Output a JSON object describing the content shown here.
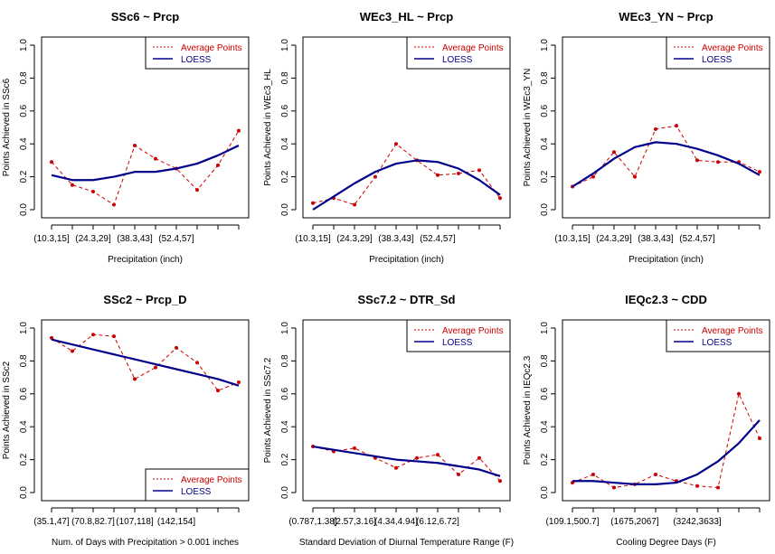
{
  "legend_labels": {
    "avg": "Average Points",
    "loess": "LOESS"
  },
  "colors": {
    "avg": "#cc0000",
    "loess": "#00008b"
  },
  "chart_data": [
    {
      "type": "line",
      "title": "SSc6 ~ Prcp",
      "xlabel": "Precipitation (inch)",
      "ylabel": "Points Achieved in SSc6",
      "ylim": [
        0,
        1
      ],
      "yticks": [
        "0.0",
        "0.2",
        "0.4",
        "0.6",
        "0.8",
        "1.0"
      ],
      "xticks": [
        "(10.3,15]",
        "(24.3,29]",
        "(38.3,43]",
        "(52.4,57]"
      ],
      "xtick_positions": [
        1,
        3,
        5,
        7
      ],
      "legend_position": "top-right",
      "series": [
        {
          "name": "Average Points",
          "style": "dashed",
          "x": [
            1,
            2,
            3,
            4,
            5,
            6,
            7,
            8,
            9,
            10
          ],
          "values": [
            0.29,
            0.15,
            0.11,
            0.03,
            0.39,
            0.31,
            0.25,
            0.12,
            0.27,
            0.48
          ]
        },
        {
          "name": "LOESS",
          "style": "solid",
          "x": [
            1,
            2,
            3,
            4,
            5,
            6,
            7,
            8,
            9,
            10
          ],
          "values": [
            0.21,
            0.18,
            0.18,
            0.2,
            0.23,
            0.23,
            0.25,
            0.28,
            0.33,
            0.39
          ]
        }
      ]
    },
    {
      "type": "line",
      "title": "WEc3_HL ~ Prcp",
      "xlabel": "Precipitation (inch)",
      "ylabel": "Points Achieved in WEc3_HL",
      "ylim": [
        0,
        1
      ],
      "yticks": [
        "0.0",
        "0.2",
        "0.4",
        "0.6",
        "0.8",
        "1.0"
      ],
      "xticks": [
        "(10.3,15]",
        "(24.3,29]",
        "(38.3,43]",
        "(52.4,57]"
      ],
      "xtick_positions": [
        1,
        3,
        5,
        7
      ],
      "legend_position": "top-right",
      "series": [
        {
          "name": "Average Points",
          "style": "dashed",
          "x": [
            1,
            2,
            3,
            4,
            5,
            6,
            7,
            8,
            9,
            10
          ],
          "values": [
            0.04,
            0.07,
            0.03,
            0.2,
            0.4,
            0.3,
            0.21,
            0.22,
            0.24,
            0.07
          ]
        },
        {
          "name": "LOESS",
          "style": "solid",
          "x": [
            1,
            2,
            3,
            4,
            5,
            6,
            7,
            8,
            9,
            10
          ],
          "values": [
            0.0,
            0.08,
            0.16,
            0.23,
            0.28,
            0.3,
            0.29,
            0.25,
            0.18,
            0.09
          ]
        }
      ]
    },
    {
      "type": "line",
      "title": "WEc3_YN ~ Prcp",
      "xlabel": "Precipitation (inch)",
      "ylabel": "Points Achieved in WEc3_YN",
      "ylim": [
        0,
        1
      ],
      "yticks": [
        "0.0",
        "0.2",
        "0.4",
        "0.6",
        "0.8",
        "1.0"
      ],
      "xticks": [
        "(10.3,15]",
        "(24.3,29]",
        "(38.3,43]",
        "(52.4,57]"
      ],
      "xtick_positions": [
        1,
        3,
        5,
        7
      ],
      "legend_position": "top-right",
      "series": [
        {
          "name": "Average Points",
          "style": "dashed",
          "x": [
            1,
            2,
            3,
            4,
            5,
            6,
            7,
            8,
            9,
            10
          ],
          "values": [
            0.14,
            0.2,
            0.35,
            0.2,
            0.49,
            0.51,
            0.3,
            0.29,
            0.29,
            0.23
          ]
        },
        {
          "name": "LOESS",
          "style": "solid",
          "x": [
            1,
            2,
            3,
            4,
            5,
            6,
            7,
            8,
            9,
            10
          ],
          "values": [
            0.14,
            0.22,
            0.31,
            0.38,
            0.41,
            0.4,
            0.37,
            0.33,
            0.28,
            0.21
          ]
        }
      ]
    },
    {
      "type": "line",
      "title": "SSc2 ~ Prcp_D",
      "xlabel": "Num. of Days with Precipitation > 0.001 inches",
      "ylabel": "Points Achieved in SSc2",
      "ylim": [
        0,
        1
      ],
      "yticks": [
        "0.0",
        "0.2",
        "0.4",
        "0.6",
        "0.8",
        "1.0"
      ],
      "xticks": [
        "(35.1,47]",
        "(70.8,82.7]",
        "(107,118]",
        "(142,154]"
      ],
      "xtick_positions": [
        1,
        3,
        5,
        7
      ],
      "legend_position": "bottom-right",
      "series": [
        {
          "name": "Average Points",
          "style": "dashed",
          "x": [
            1,
            2,
            3,
            4,
            5,
            6,
            7,
            8,
            9,
            10
          ],
          "values": [
            0.94,
            0.86,
            0.96,
            0.95,
            0.69,
            0.76,
            0.88,
            0.79,
            0.62,
            0.67
          ]
        },
        {
          "name": "LOESS",
          "style": "solid",
          "x": [
            1,
            2,
            3,
            4,
            5,
            6,
            7,
            8,
            9,
            10
          ],
          "values": [
            0.93,
            0.9,
            0.87,
            0.84,
            0.81,
            0.78,
            0.75,
            0.72,
            0.69,
            0.65
          ]
        }
      ]
    },
    {
      "type": "line",
      "title": "SSc7.2 ~ DTR_Sd",
      "xlabel": "Standard Deviation of Diurnal Temperature Range (F)",
      "ylabel": "Points Achieved in SSc7.2",
      "ylim": [
        0,
        1
      ],
      "yticks": [
        "0.0",
        "0.2",
        "0.4",
        "0.6",
        "0.8",
        "1.0"
      ],
      "xticks": [
        "(0.787,1.38]",
        "(2.57,3.16]",
        "(4.34,4.94]",
        "(6.12,6.72]"
      ],
      "xtick_positions": [
        1,
        3,
        5,
        7
      ],
      "legend_position": "top-right",
      "series": [
        {
          "name": "Average Points",
          "style": "dashed",
          "x": [
            1,
            2,
            3,
            4,
            5,
            6,
            7,
            8,
            9,
            10
          ],
          "values": [
            0.28,
            0.25,
            0.27,
            0.21,
            0.15,
            0.21,
            0.23,
            0.11,
            0.21,
            0.07
          ]
        },
        {
          "name": "LOESS",
          "style": "solid",
          "x": [
            1,
            2,
            3,
            4,
            5,
            6,
            7,
            8,
            9,
            10
          ],
          "values": [
            0.28,
            0.26,
            0.24,
            0.22,
            0.2,
            0.19,
            0.18,
            0.16,
            0.14,
            0.1
          ]
        }
      ]
    },
    {
      "type": "line",
      "title": "IEQc2.3 ~ CDD",
      "xlabel": "Cooling Degree Days (F)",
      "ylabel": "Points Achieved in IEQc2.3",
      "ylim": [
        0,
        1
      ],
      "yticks": [
        "0.0",
        "0.2",
        "0.4",
        "0.6",
        "0.8",
        "1.0"
      ],
      "xticks": [
        "(109.1,500.7]",
        "(1675,2067]",
        "(3242,3633]"
      ],
      "xtick_positions": [
        1,
        4,
        7
      ],
      "legend_position": "top-right",
      "series": [
        {
          "name": "Average Points",
          "style": "dashed",
          "x": [
            1,
            2,
            3,
            4,
            5,
            6,
            7,
            8,
            9,
            10
          ],
          "values": [
            0.06,
            0.11,
            0.03,
            0.05,
            0.11,
            0.07,
            0.04,
            0.03,
            0.6,
            0.33
          ]
        },
        {
          "name": "LOESS",
          "style": "solid",
          "x": [
            1,
            2,
            3,
            4,
            5,
            6,
            7,
            8,
            9,
            10
          ],
          "values": [
            0.07,
            0.07,
            0.06,
            0.05,
            0.05,
            0.06,
            0.11,
            0.19,
            0.3,
            0.44
          ]
        }
      ]
    }
  ]
}
